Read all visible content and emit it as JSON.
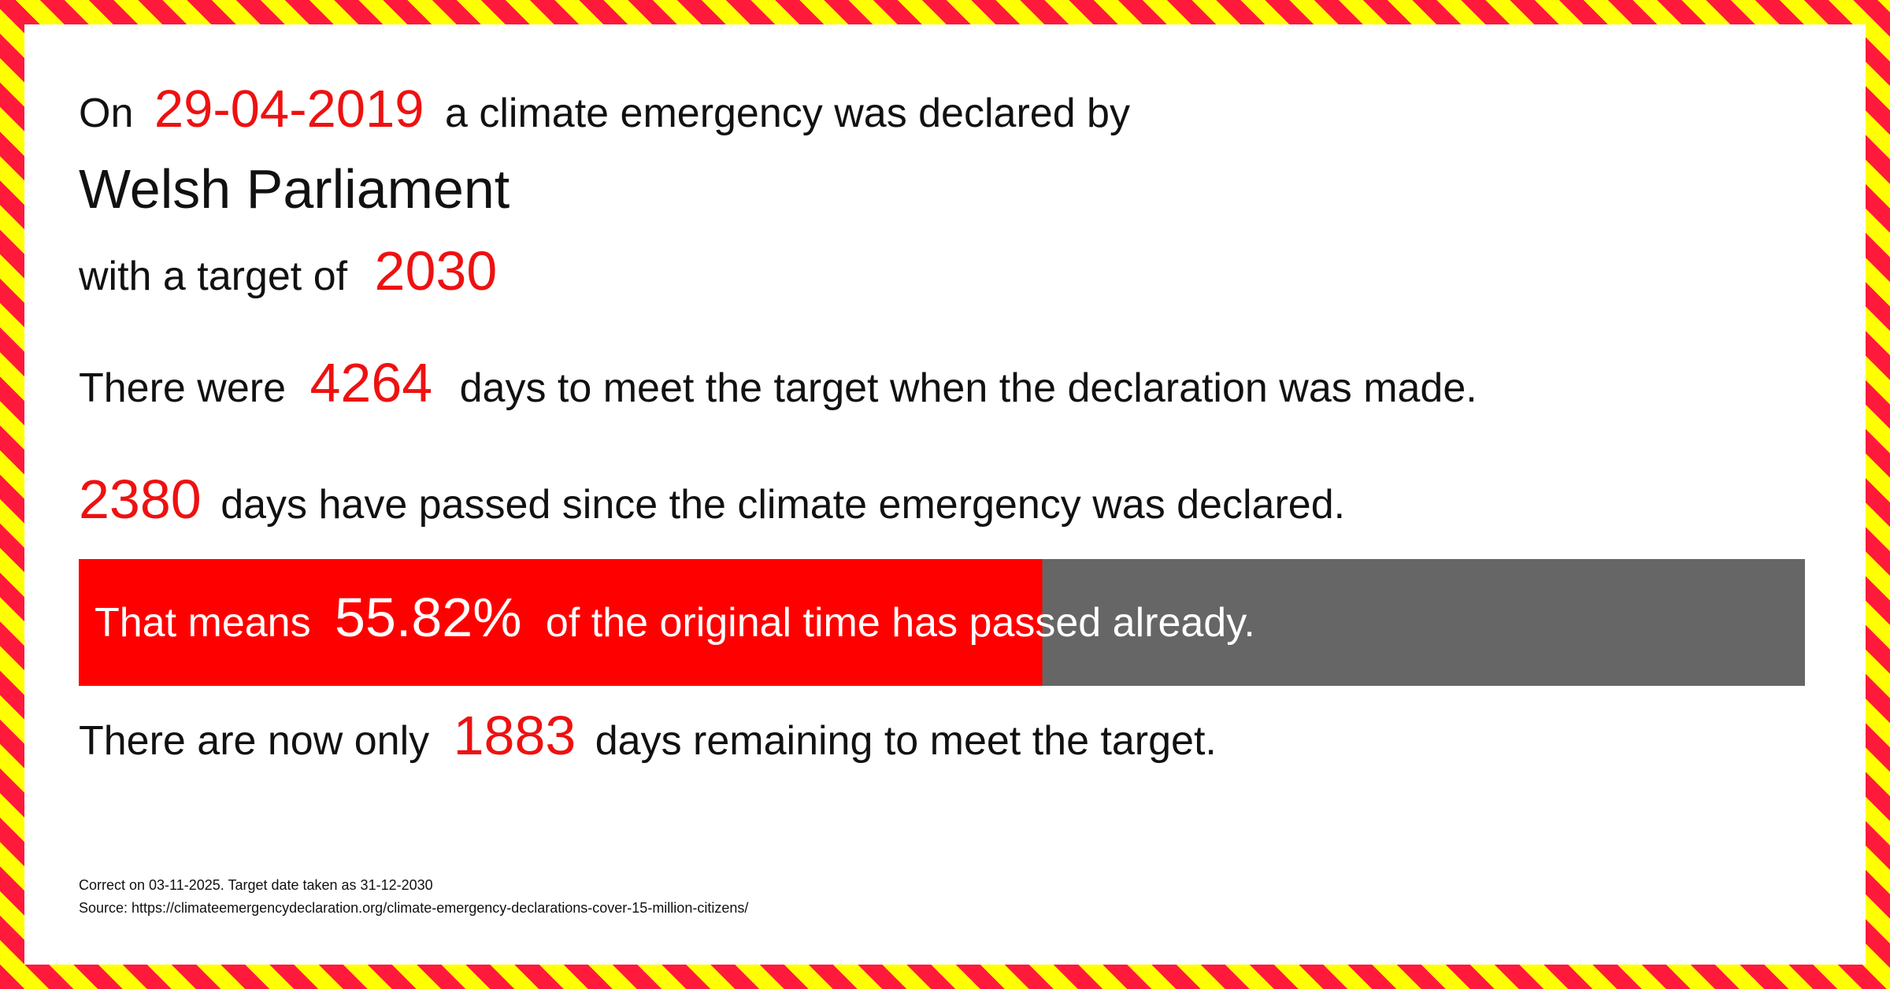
{
  "line1": {
    "prefix": "On",
    "date": "29-04-2019",
    "suffix": "a climate emergency was declared by"
  },
  "declarer": "Welsh Parliament",
  "target": {
    "prefix": "with a target of",
    "year": "2030"
  },
  "days_total": {
    "prefix": "There were",
    "value": 4264,
    "suffix": "days to meet the target when the declaration was made."
  },
  "days_passed": {
    "value": 2380,
    "suffix": "days have passed since the climate emergency was declared."
  },
  "progress": {
    "prefix": "That means",
    "percent": {
      "value": 55.82,
      "label": "55.82%"
    },
    "suffix": "of the original time has passed already."
  },
  "remaining": {
    "prefix": "There are now only",
    "value": 1883,
    "suffix": "days remaining to meet the target."
  },
  "footer": {
    "correct": "Correct on 03-11-2025. Target date taken as 31-12-2030",
    "source": "Source: https://climateemergencydeclaration.org/climate-emergency-declarations-cover-15-million-citizens/"
  }
}
